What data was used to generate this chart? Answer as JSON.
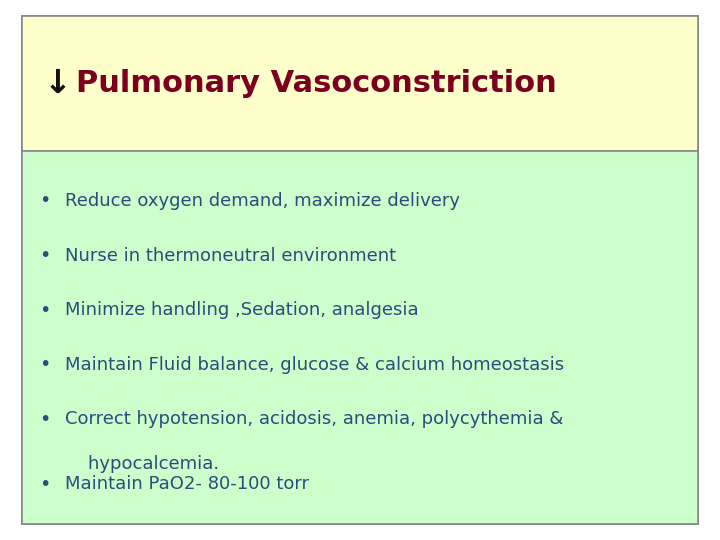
{
  "title": "Pulmonary Vasoconstriction",
  "title_color": "#7b0020",
  "title_arrow": "↓",
  "title_bg_color": "#ffffcc",
  "content_bg_color": "#ccffcc",
  "bullet_color": "#2e4a7a",
  "outer_bg": "#ffffff",
  "title_fontsize": 22,
  "bullet_fontsize": 13,
  "bullet_points_line1": [
    "Reduce oxygen demand, maximize delivery",
    "Nurse in thermoneutral environment",
    "Minimize handling ,Sedation, analgesia",
    "Maintain Fluid balance, glucose & calcium homeostasis",
    "Correct hypotension, acidosis, anemia, polycythemia &",
    "Maintain PaO2- 80-100 torr"
  ],
  "bullet_points_line2": [
    "",
    "",
    "",
    "",
    "    hypocalcemia.",
    ""
  ]
}
